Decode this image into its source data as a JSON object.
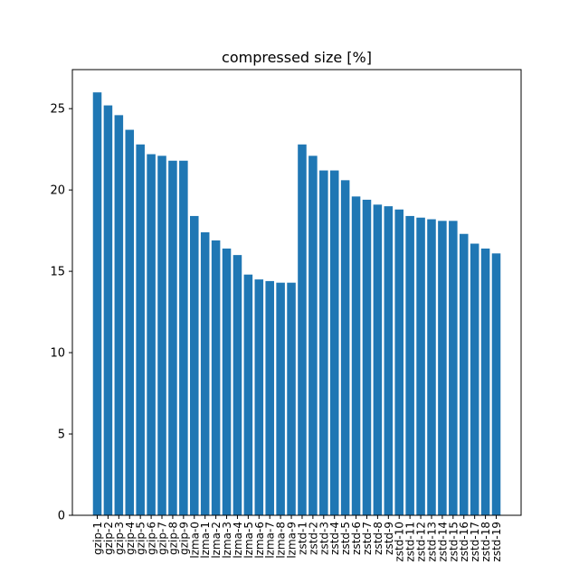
{
  "chart_data": {
    "type": "bar",
    "title": "compressed size [%]",
    "xlabel": "",
    "ylabel": "",
    "ylim": [
      0,
      27.4
    ],
    "yticks": [
      0,
      5,
      10,
      15,
      20,
      25
    ],
    "bar_color": "#1f77b4",
    "grid": false,
    "categories": [
      "gzip-1",
      "gzip-2",
      "gzip-3",
      "gzip-4",
      "gzip-5",
      "gzip-6",
      "gzip-7",
      "gzip-8",
      "gzip-9",
      "lzma-0",
      "lzma-1",
      "lzma-2",
      "lzma-3",
      "lzma-4",
      "lzma-5",
      "lzma-6",
      "lzma-7",
      "lzma-8",
      "lzma-9",
      "zstd-1",
      "zstd-2",
      "zstd-3",
      "zstd-4",
      "zstd-5",
      "zstd-6",
      "zstd-7",
      "zstd-8",
      "zstd-9",
      "zstd-10",
      "zstd-11",
      "zstd-12",
      "zstd-13",
      "zstd-14",
      "zstd-15",
      "zstd-16",
      "zstd-17",
      "zstd-18",
      "zstd-19"
    ],
    "values": [
      26.0,
      25.2,
      24.6,
      23.7,
      22.8,
      22.2,
      22.1,
      21.8,
      21.8,
      18.4,
      17.4,
      16.9,
      16.4,
      16.0,
      14.8,
      14.5,
      14.4,
      14.3,
      14.3,
      22.8,
      22.1,
      21.2,
      21.2,
      20.6,
      19.6,
      19.4,
      19.1,
      19.0,
      18.8,
      18.4,
      18.3,
      18.2,
      18.1,
      18.1,
      17.3,
      16.7,
      16.4,
      16.1
    ]
  }
}
